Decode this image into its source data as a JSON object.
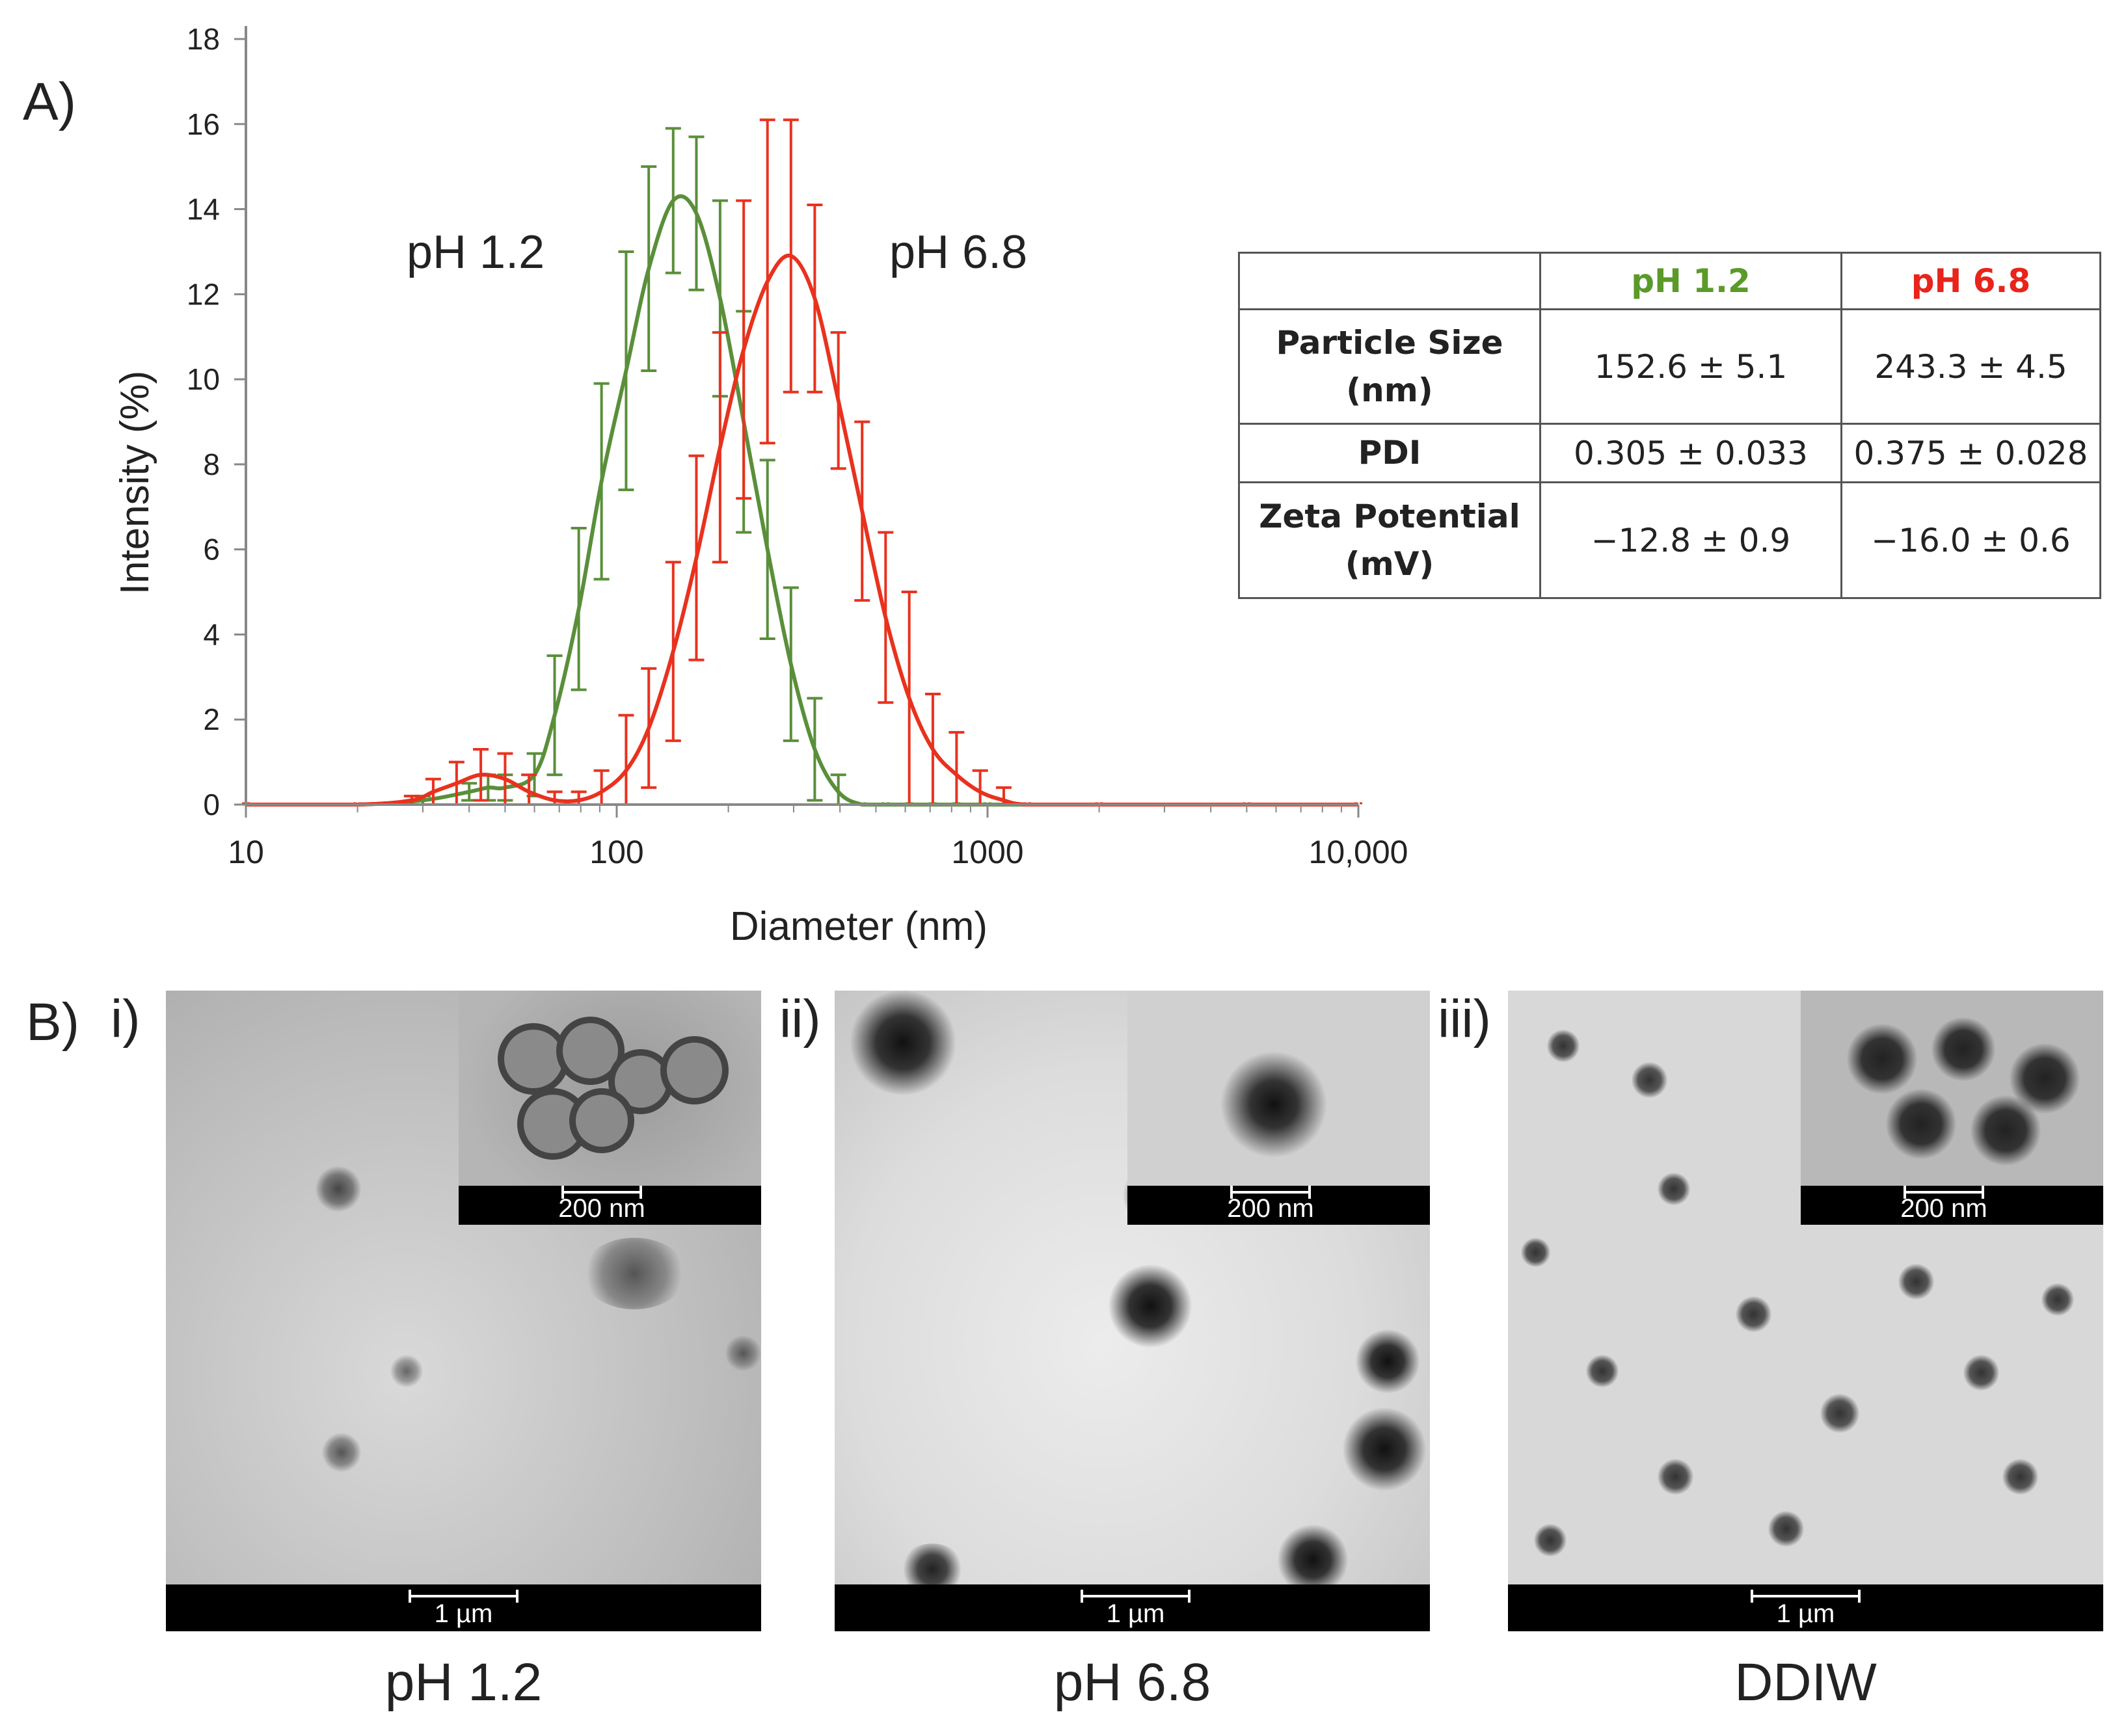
{
  "panel_a_label": "A)",
  "panel_b_label": "B)",
  "colors": {
    "green": "#5a8f3a",
    "red": "#e8321e",
    "table_green": "#5b9a2a",
    "table_red": "#e8241b"
  },
  "chart_data": {
    "type": "line",
    "title": "",
    "xlabel": "Diameter (nm)",
    "ylabel": "Intensity (%)",
    "xscale": "log",
    "xlim": [
      10,
      10000
    ],
    "ylim": [
      0,
      18
    ],
    "xticks": [
      10,
      100,
      1000,
      10000
    ],
    "xtick_labels": [
      "10",
      "100",
      "1000",
      "10,000"
    ],
    "yticks": [
      0,
      2,
      4,
      6,
      8,
      10,
      12,
      14,
      16,
      18
    ],
    "annotations": [
      {
        "text": "pH 1.2",
        "x": 40,
        "y": 13
      },
      {
        "text": "pH 6.8",
        "x": 520,
        "y": 13
      }
    ],
    "series": [
      {
        "name": "pH 1.2",
        "color": "#5a8f3a",
        "x": [
          10,
          20,
          30,
          40,
          45,
          50,
          60,
          68,
          79,
          91,
          106,
          122,
          142,
          164,
          190,
          220,
          255,
          295,
          342,
          396,
          459,
          531,
          615,
          712,
          825,
          1000,
          2000,
          5000,
          10000
        ],
        "y": [
          0,
          0,
          0.1,
          0.3,
          0.4,
          0.4,
          0.7,
          2.1,
          4.6,
          7.6,
          10.2,
          12.6,
          14.2,
          13.9,
          11.9,
          9.0,
          6.0,
          3.3,
          1.3,
          0.3,
          0,
          0,
          0,
          0,
          0,
          0,
          0,
          0,
          0
        ],
        "err": [
          0,
          0,
          0.1,
          0.2,
          0.3,
          0.3,
          0.5,
          1.4,
          1.9,
          2.3,
          2.8,
          2.4,
          1.7,
          1.8,
          2.3,
          2.6,
          2.1,
          1.8,
          1.2,
          0.4,
          0,
          0,
          0,
          0,
          0,
          0,
          0,
          0,
          0
        ]
      },
      {
        "name": "pH 6.8",
        "color": "#e8321e",
        "x": [
          10,
          20,
          28,
          32,
          37,
          43,
          50,
          58,
          68,
          79,
          91,
          106,
          122,
          142,
          164,
          190,
          220,
          255,
          295,
          342,
          396,
          459,
          531,
          615,
          712,
          825,
          955,
          1106,
          1280,
          2000,
          10000
        ],
        "y": [
          0,
          0,
          0.1,
          0.3,
          0.5,
          0.7,
          0.6,
          0.3,
          0.1,
          0.1,
          0.3,
          0.8,
          1.8,
          3.6,
          5.8,
          8.4,
          10.7,
          12.3,
          12.9,
          11.9,
          9.5,
          6.9,
          4.4,
          2.5,
          1.3,
          0.7,
          0.3,
          0.1,
          0,
          0,
          0
        ],
        "err": [
          0,
          0,
          0.1,
          0.3,
          0.5,
          0.6,
          0.6,
          0.4,
          0.2,
          0.2,
          0.5,
          1.3,
          1.4,
          2.1,
          2.4,
          2.7,
          3.5,
          3.8,
          3.2,
          2.2,
          1.6,
          2.1,
          2.0,
          2.5,
          1.3,
          1.0,
          0.5,
          0.3,
          0,
          0,
          0
        ]
      }
    ]
  },
  "table": {
    "col_headers": [
      "",
      "pH 1.2",
      "pH 6.8"
    ],
    "rows": [
      {
        "label_line1": "Particle Size",
        "label_line2": "(nm)",
        "ph12": "152.6 ± 5.1",
        "ph68": "243.3 ± 4.5"
      },
      {
        "label_line1": "PDI",
        "label_line2": "",
        "ph12": "0.305 ± 0.033",
        "ph68": "0.375 ± 0.028"
      },
      {
        "label_line1": "Zeta Potential",
        "label_line2": "(mV)",
        "ph12": "−12.8 ± 0.9",
        "ph68": "−16.0 ± 0.6"
      }
    ]
  },
  "tem_panels": [
    {
      "sub_label": "i)",
      "caption": "pH 1.2",
      "main_scale": "1 µm",
      "inset_scale": "200 nm"
    },
    {
      "sub_label": "ii)",
      "caption": "pH 6.8",
      "main_scale": "1 µm",
      "inset_scale": "200 nm"
    },
    {
      "sub_label": "iii)",
      "caption": "DDIW",
      "main_scale": "1 µm",
      "inset_scale": "200 nm"
    }
  ]
}
